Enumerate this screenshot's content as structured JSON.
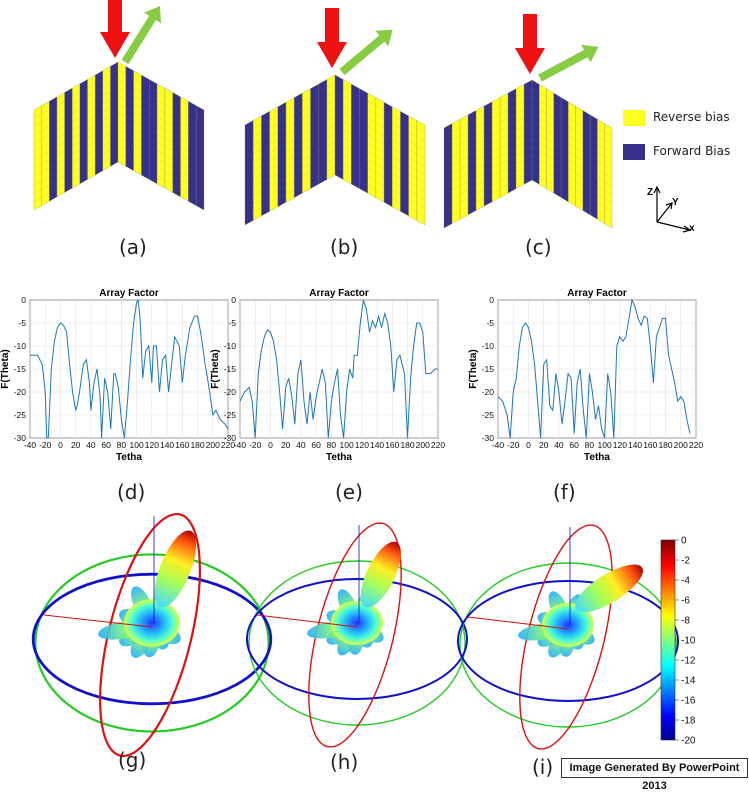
{
  "panel_labels": [
    "(a)",
    "(b)",
    "(c)",
    "(d)",
    "(e)",
    "(f)",
    "(g)",
    "(h)",
    "(i)"
  ],
  "legend": {
    "reverse_label": "Reverse bias",
    "forward_label": "Forward Bias",
    "reverse_color": "#FFFF22",
    "forward_color": "#35308C"
  },
  "axes_triad": {
    "z": "Z",
    "y": "Y",
    "x": "x"
  },
  "arrow_colors": {
    "incident": "#EE1111",
    "reflected": "#88CC44"
  },
  "chart_data": [
    {
      "type": "line",
      "title": "Array Factor",
      "xlabel": "Tetha",
      "ylabel": "F(Theta)",
      "xlim": [
        -40,
        220
      ],
      "ylim": [
        -30,
        0
      ],
      "xticks": [
        -40,
        -20,
        0,
        20,
        40,
        60,
        80,
        100,
        120,
        140,
        160,
        180,
        200,
        220
      ],
      "yticks": [
        0,
        -5,
        -10,
        -15,
        -20,
        -25,
        -30
      ],
      "grid": true,
      "line_color": "#1F77B4",
      "x": [
        -40,
        -30,
        -24,
        -20,
        -18,
        -16,
        -12,
        -8,
        -4,
        0,
        4,
        8,
        12,
        16,
        20,
        22,
        25,
        30,
        34,
        38,
        40,
        44,
        48,
        52,
        54,
        58,
        62,
        66,
        70,
        72,
        76,
        80,
        84,
        88,
        92,
        96,
        100,
        102,
        104,
        106,
        108,
        112,
        116,
        120,
        122,
        126,
        130,
        134,
        138,
        142,
        146,
        150,
        156,
        160,
        164,
        170,
        176,
        180,
        184,
        190,
        196,
        200,
        204,
        210,
        216,
        220
      ],
      "y": [
        -12,
        -12,
        -14,
        -20,
        -30,
        -30,
        -15,
        -9,
        -6,
        -5,
        -5.5,
        -7,
        -14,
        -20,
        -24,
        -23,
        -20,
        -14,
        -13,
        -18,
        -24,
        -18,
        -15,
        -21,
        -30,
        -17,
        -20,
        -28,
        -16,
        -16,
        -19,
        -26,
        -30,
        -22,
        -13,
        -5,
        -0.5,
        0,
        -3,
        -9,
        -17,
        -11,
        -10,
        -18,
        -10,
        -10,
        -20,
        -13,
        -12,
        -20,
        -14,
        -8,
        -10,
        -18,
        -12,
        -6,
        -3.5,
        -3.5,
        -7,
        -14,
        -20,
        -25,
        -24,
        -26,
        -27,
        -28
      ]
    },
    {
      "type": "line",
      "title": "Array Factor",
      "xlabel": "Tetha",
      "ylabel": "F(Theta)",
      "xlim": [
        -40,
        220
      ],
      "ylim": [
        -30,
        0
      ],
      "xticks": [
        -40,
        -20,
        0,
        20,
        40,
        60,
        80,
        100,
        120,
        140,
        160,
        180,
        200,
        220
      ],
      "yticks": [
        0,
        -5,
        -10,
        -15,
        -20,
        -25,
        -30
      ],
      "grid": true,
      "line_color": "#1F77B4",
      "x": [
        -40,
        -34,
        -28,
        -24,
        -20,
        -16,
        -12,
        -8,
        -4,
        0,
        4,
        8,
        12,
        16,
        20,
        24,
        28,
        32,
        36,
        40,
        44,
        48,
        52,
        56,
        60,
        64,
        68,
        72,
        76,
        80,
        84,
        88,
        92,
        96,
        100,
        104,
        108,
        110,
        114,
        118,
        122,
        126,
        130,
        134,
        138,
        142,
        146,
        150,
        154,
        158,
        162,
        166,
        170,
        176,
        180,
        184,
        188,
        192,
        196,
        200,
        204,
        210,
        216,
        220
      ],
      "y": [
        -22,
        -20,
        -19,
        -22,
        -30,
        -16,
        -11,
        -8,
        -6.5,
        -7,
        -9,
        -13,
        -20,
        -28,
        -19,
        -17,
        -21,
        -27,
        -16,
        -13,
        -22,
        -27,
        -20,
        -26,
        -21,
        -18,
        -15,
        -18,
        -30,
        -22,
        -18,
        -15,
        -25,
        -30,
        -20,
        -15,
        -17,
        -12,
        -12,
        -5,
        0,
        -2,
        -7,
        -4.5,
        -6,
        -3.5,
        -6,
        -3,
        -5,
        -10,
        -20,
        -13,
        -12,
        -16,
        -30,
        -17,
        -10,
        -5,
        -5,
        -7,
        -16,
        -16,
        -15,
        -15
      ]
    },
    {
      "type": "line",
      "title": "Array Factor",
      "xlabel": "Tetha",
      "ylabel": "F(Theta)",
      "xlim": [
        -40,
        220
      ],
      "ylim": [
        -30,
        0
      ],
      "xticks": [
        -40,
        -20,
        0,
        20,
        40,
        60,
        80,
        100,
        120,
        140,
        160,
        180,
        200,
        220
      ],
      "yticks": [
        0,
        -5,
        -10,
        -15,
        -20,
        -25,
        -30
      ],
      "grid": true,
      "line_color": "#1F77B4",
      "x": [
        -40,
        -34,
        -28,
        -24,
        -20,
        -16,
        -12,
        -8,
        -4,
        0,
        4,
        8,
        12,
        16,
        20,
        24,
        28,
        32,
        36,
        40,
        44,
        48,
        52,
        56,
        60,
        64,
        68,
        72,
        76,
        80,
        84,
        88,
        92,
        96,
        100,
        104,
        108,
        112,
        116,
        120,
        124,
        128,
        132,
        136,
        140,
        144,
        148,
        152,
        156,
        160,
        164,
        168,
        172,
        176,
        180,
        184,
        188,
        192,
        196,
        200,
        204,
        208,
        212
      ],
      "y": [
        -21,
        -22,
        -25,
        -30,
        -20,
        -17,
        -10,
        -6,
        -5,
        -6,
        -9,
        -14,
        -22,
        -30,
        -14,
        -13,
        -23,
        -24,
        -16,
        -20,
        -27,
        -22,
        -16,
        -17,
        -29,
        -18,
        -15,
        -24,
        -30,
        -16,
        -20,
        -26,
        -23,
        -28,
        -30,
        -16,
        -20,
        -30,
        -10,
        -8,
        -9,
        -8,
        -4,
        0,
        -1.5,
        -4,
        -5.5,
        -3.5,
        -4,
        -10,
        -18,
        -8,
        -6,
        -4,
        -4,
        -12,
        -15,
        -18,
        -22,
        -21,
        -22,
        -26,
        -29
      ]
    },
    {
      "type": "heatmap",
      "colorbar_ticks": [
        0,
        -2,
        -4,
        -6,
        -8,
        -10,
        -12,
        -14,
        -16,
        -18,
        -20
      ],
      "clim": [
        -20,
        0
      ],
      "colormap": "jet"
    }
  ]
}
